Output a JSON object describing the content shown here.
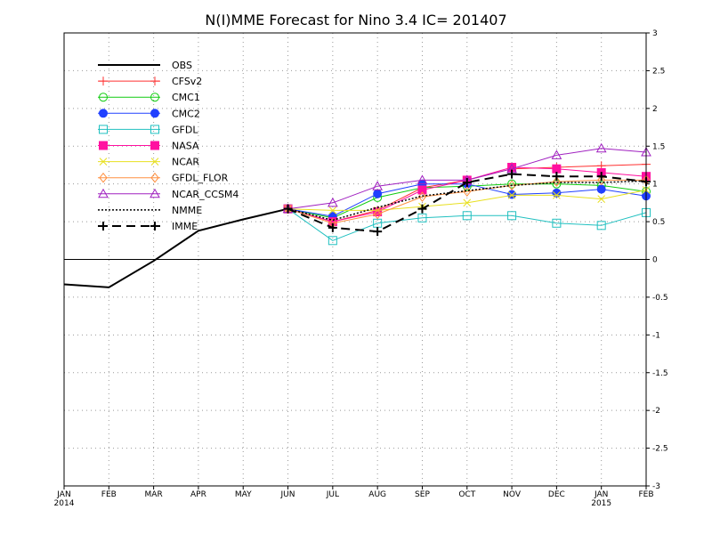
{
  "chart_data": {
    "type": "line",
    "title": "N(I)MME Forecast for Nino 3.4  IC= 201407",
    "xlabel": "",
    "ylabel": "",
    "categories": [
      "JAN",
      "FEB",
      "MAR",
      "APR",
      "MAY",
      "JUN",
      "JUL",
      "AUG",
      "SEP",
      "OCT",
      "NOV",
      "DEC",
      "JAN",
      "FEB"
    ],
    "year_labels": [
      {
        "index": 0,
        "label": "2014"
      },
      {
        "index": 12,
        "label": "2015"
      }
    ],
    "ylim": [
      -3,
      3
    ],
    "y_ticks": [
      -3,
      -2.5,
      -2,
      -1.5,
      -1,
      -0.5,
      0,
      0.5,
      1,
      1.5,
      2,
      2.5,
      3
    ],
    "y_tick_labels": [
      "-3",
      "-2.5",
      "-2",
      "-1.5",
      "-1",
      "-0.5",
      "0",
      "0.5",
      "1",
      "1.5",
      "2",
      "2.5",
      "3"
    ],
    "grid": true,
    "legend_position": "top-left",
    "series": [
      {
        "name": "OBS",
        "color": "#000000",
        "marker": "none",
        "dash": "solid",
        "width": 2,
        "x": [
          0,
          1,
          2,
          3,
          4,
          5
        ],
        "values": [
          -0.33,
          -0.37,
          -0.02,
          0.38,
          0.53,
          0.67
        ]
      },
      {
        "name": "CFSv2",
        "color": "#ff3030",
        "marker": "plus",
        "dash": "solid",
        "width": 1,
        "x": [
          5,
          6,
          7,
          8,
          9,
          10,
          11,
          12,
          13
        ],
        "values": [
          0.67,
          0.5,
          0.65,
          0.95,
          1.05,
          1.2,
          1.22,
          1.24,
          1.26
        ]
      },
      {
        "name": "CMC1",
        "color": "#10cc10",
        "marker": "circle-open",
        "dash": "solid",
        "width": 1,
        "x": [
          5,
          6,
          7,
          8,
          9,
          10,
          11,
          12,
          13
        ],
        "values": [
          0.67,
          0.55,
          0.82,
          0.95,
          0.97,
          1.0,
          1.0,
          0.98,
          0.9
        ]
      },
      {
        "name": "CMC2",
        "color": "#2040ff",
        "marker": "circle-filled",
        "dash": "solid",
        "width": 1,
        "x": [
          5,
          6,
          7,
          8,
          9,
          10,
          11,
          12,
          13
        ],
        "values": [
          0.67,
          0.57,
          0.87,
          1.0,
          1.0,
          0.86,
          0.88,
          0.93,
          0.84
        ]
      },
      {
        "name": "GFDL",
        "color": "#20c0c0",
        "marker": "square-open",
        "dash": "solid",
        "width": 1,
        "x": [
          5,
          6,
          7,
          8,
          9,
          10,
          11,
          12,
          13
        ],
        "values": [
          0.67,
          0.25,
          0.48,
          0.55,
          0.58,
          0.58,
          0.48,
          0.45,
          0.62
        ]
      },
      {
        "name": "NASA",
        "color": "#ff10a0",
        "marker": "square-filled",
        "dash": "solid",
        "width": 1,
        "x": [
          5,
          6,
          7,
          8,
          9,
          10,
          11,
          12,
          13
        ],
        "values": [
          0.67,
          0.5,
          0.63,
          0.92,
          1.05,
          1.22,
          1.2,
          1.15,
          1.1
        ]
      },
      {
        "name": "NCAR",
        "color": "#e8e020",
        "marker": "x",
        "dash": "solid",
        "width": 1,
        "x": [
          5,
          6,
          7,
          8,
          9,
          10,
          11,
          12,
          13
        ],
        "values": [
          0.67,
          0.65,
          0.65,
          0.7,
          0.75,
          0.85,
          0.85,
          0.8,
          0.92
        ]
      },
      {
        "name": "GFDL_FLOR",
        "color": "#ff9040",
        "marker": "diamond-open",
        "dash": "solid",
        "width": 1,
        "x": [
          5,
          6,
          7,
          8,
          9,
          10,
          11,
          12,
          13
        ],
        "values": [
          0.67,
          0.48,
          0.6,
          0.83,
          0.9,
          0.98,
          1.03,
          1.05,
          1.05
        ]
      },
      {
        "name": "NCAR_CCSM4",
        "color": "#a020c0",
        "marker": "triangle-open",
        "dash": "solid",
        "width": 1,
        "x": [
          5,
          6,
          7,
          8,
          9,
          10,
          11,
          12,
          13
        ],
        "values": [
          0.67,
          0.75,
          0.97,
          1.05,
          1.05,
          1.2,
          1.38,
          1.47,
          1.42
        ]
      },
      {
        "name": "NMME",
        "color": "#000000",
        "marker": "none",
        "dash": "dotted",
        "width": 1.5,
        "x": [
          5,
          6,
          7,
          8,
          9,
          10,
          11,
          12,
          13
        ],
        "values": [
          0.67,
          0.52,
          0.69,
          0.84,
          0.91,
          0.98,
          1.02,
          1.02,
          1.04
        ]
      },
      {
        "name": "IMME",
        "color": "#000000",
        "marker": "plus-bold",
        "dash": "dashed",
        "width": 2,
        "x": [
          5,
          6,
          7,
          8,
          9,
          10,
          11,
          12,
          13
        ],
        "values": [
          0.67,
          0.42,
          0.37,
          0.67,
          1.02,
          1.13,
          1.1,
          1.1,
          1.03
        ]
      }
    ]
  }
}
